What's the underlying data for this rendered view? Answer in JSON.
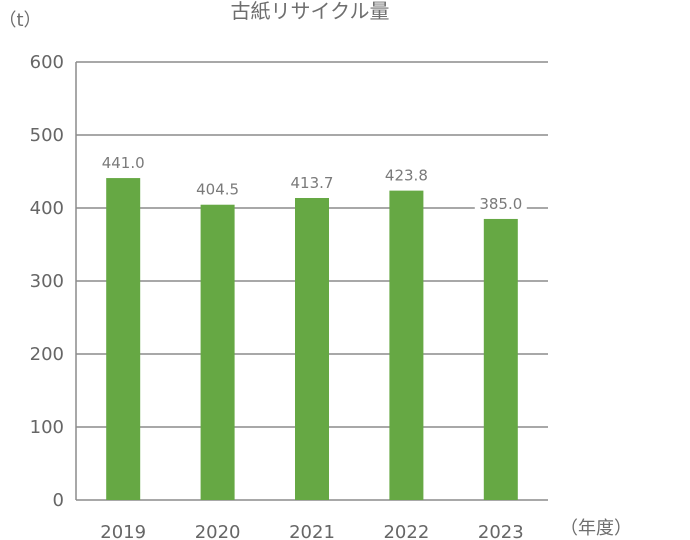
{
  "chart_data": {
    "type": "bar",
    "title": "古紙リサイクル量",
    "ylabel": "（t）",
    "xlabel": "（年度）",
    "categories": [
      "2019",
      "2020",
      "2021",
      "2022",
      "2023"
    ],
    "values": [
      441.0,
      404.5,
      413.7,
      423.8,
      385.0
    ],
    "data_labels": [
      "441.0",
      "404.5",
      "413.7",
      "423.8",
      "385.0"
    ],
    "ylim": [
      0,
      600
    ],
    "yticks": [
      "0",
      "100",
      "200",
      "300",
      "400",
      "500",
      "600"
    ],
    "grid": true,
    "bar_color": "#66a844"
  }
}
